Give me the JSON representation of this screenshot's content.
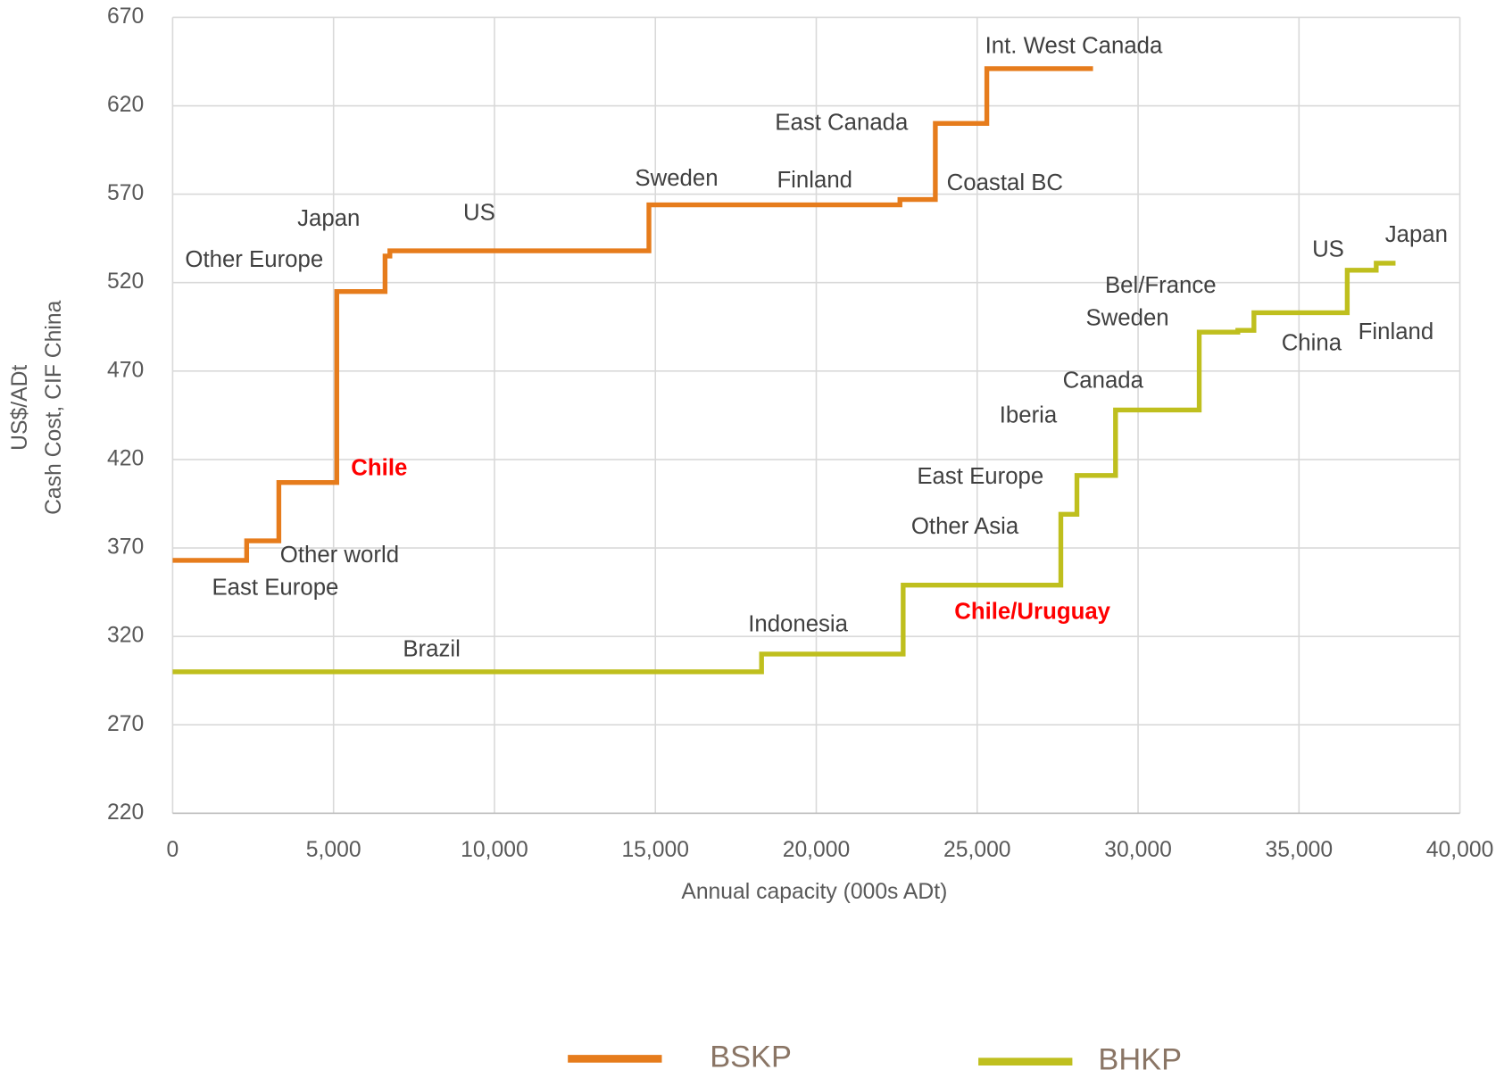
{
  "chart_data": {
    "type": "step",
    "x_label": "Annual capacity (000s ADt)",
    "y_label": [
      "US$/ADt",
      "Cash Cost, CIF China"
    ],
    "xlim": [
      0,
      40000
    ],
    "xticks": [
      0,
      {
        "value": 5000,
        "label": "5,000"
      },
      {
        "value": 10000,
        "label": "10,000"
      },
      {
        "value": 15000,
        "label": "15,000"
      },
      {
        "value": 20000,
        "label": "20,000"
      },
      {
        "value": 25000,
        "label": "25,000"
      },
      {
        "value": 30000,
        "label": "30,000"
      },
      {
        "value": 35000,
        "label": "35,000"
      },
      {
        "value": 40000,
        "label": "40,000"
      }
    ],
    "ylim": [
      220,
      670
    ],
    "yticks": [
      220,
      270,
      320,
      370,
      420,
      470,
      520,
      570,
      620,
      670
    ],
    "grid": true,
    "legend": "bottom",
    "series": [
      {
        "name": "BSKP",
        "color": "#e67c1c",
        "x": [
          0,
          2300,
          3300,
          5100,
          6600,
          6750,
          14800,
          22600,
          23700,
          25300,
          28600
        ],
        "values": [
          363,
          374,
          407,
          515,
          535,
          538,
          564,
          567,
          610,
          641,
          641
        ]
      },
      {
        "name": "BHKP",
        "color": "#bfbf1e",
        "x": [
          0,
          18300,
          22700,
          27600,
          28100,
          29300,
          31900,
          33100,
          33600,
          36500,
          37400,
          38000
        ],
        "values": [
          300,
          310,
          349,
          389,
          411,
          448,
          492,
          493,
          503,
          527,
          531,
          531
        ]
      }
    ],
    "annotations": [
      {
        "text": "Int. West Canada",
        "color": "#404040"
      },
      {
        "text": "East Canada",
        "color": "#404040"
      },
      {
        "text": "Coastal BC",
        "color": "#404040"
      },
      {
        "text": "Sweden",
        "color": "#404040"
      },
      {
        "text": "Finland",
        "color": "#404040"
      },
      {
        "text": "US",
        "color": "#404040"
      },
      {
        "text": "Japan",
        "color": "#404040"
      },
      {
        "text": "Other Europe",
        "color": "#404040"
      },
      {
        "text": "Chile",
        "color": "#ff0000",
        "bold": true
      },
      {
        "text": "Other world",
        "color": "#404040"
      },
      {
        "text": "East Europe",
        "color": "#404040"
      },
      {
        "text": "Brazil",
        "color": "#404040"
      },
      {
        "text": "Indonesia",
        "color": "#404040"
      },
      {
        "text": "Chile/Uruguay",
        "color": "#ff0000",
        "bold": true
      },
      {
        "text": "Other Asia",
        "color": "#404040"
      },
      {
        "text": "East Europe",
        "color": "#404040"
      },
      {
        "text": "Iberia",
        "color": "#404040"
      },
      {
        "text": "Canada",
        "color": "#404040"
      },
      {
        "text": "Sweden",
        "color": "#404040"
      },
      {
        "text": "Bel/France",
        "color": "#404040"
      },
      {
        "text": "China",
        "color": "#404040"
      },
      {
        "text": "Finland",
        "color": "#404040"
      },
      {
        "text": "US",
        "color": "#404040"
      },
      {
        "text": "Japan",
        "color": "#404040"
      }
    ]
  }
}
